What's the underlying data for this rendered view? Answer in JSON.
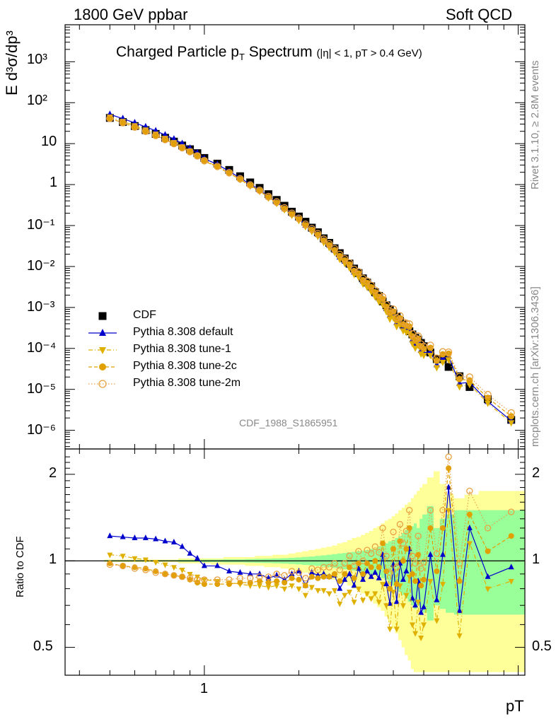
{
  "header": {
    "left": "1800 GeV ppbar",
    "right": "Soft QCD"
  },
  "side": {
    "rivet": "Rivet 3.1.10, ≥ 2.8M events",
    "mcplots": "mcplots.cern.ch [arXiv:1306.3436]"
  },
  "chart_data": {
    "type": "scatter",
    "title": "Charged Particle pT Spectrum",
    "title_main": "Charged Particle p",
    "title_sub": "T",
    "title_rest": " Spectrum",
    "title_cuts": "(|η| < 1, pT > 0.4 GeV)",
    "ylabel": "E d³σ/dp³",
    "ratio_ylabel": "Ratio to CDF",
    "xlabel": "pT",
    "watermark": "CDF_1988_S1865951",
    "xscale": "log",
    "yscale": "log",
    "xlim": [
      0.36,
      10.5
    ],
    "ylim": [
      3.5e-07,
      8000
    ],
    "ratio_ylim": [
      0.4,
      2.45
    ],
    "ratio_yscale": "log",
    "legend_placement": "bottom-left",
    "x_tick_labels": [
      "1"
    ],
    "y_tick_labels": [
      "10⁻⁶",
      "10⁻⁵",
      "10⁻⁴",
      "10⁻³",
      "10⁻²",
      "10⁻¹",
      "1",
      "10",
      "10²",
      "10³"
    ],
    "ratio_tick_labels": [
      "0.5",
      "1",
      "2"
    ],
    "x": [
      0.5,
      0.55,
      0.6,
      0.65,
      0.7,
      0.75,
      0.8,
      0.85,
      0.9,
      0.95,
      1.0,
      1.1,
      1.2,
      1.3,
      1.4,
      1.5,
      1.6,
      1.7,
      1.8,
      1.9,
      2.0,
      2.1,
      2.2,
      2.3,
      2.4,
      2.5,
      2.6,
      2.7,
      2.8,
      2.9,
      3.0,
      3.1,
      3.2,
      3.3,
      3.4,
      3.5,
      3.6,
      3.7,
      3.8,
      3.9,
      4.0,
      4.1,
      4.2,
      4.3,
      4.4,
      4.5,
      4.6,
      4.7,
      4.8,
      4.9,
      5.0,
      5.25,
      5.5,
      5.75,
      6.0,
      6.5,
      7.0,
      8.0,
      9.5
    ],
    "cdf_y": [
      42.5,
      33.7,
      26.9,
      21.4,
      17.3,
      13.9,
      11.2,
      8.99,
      7.3,
      5.85,
      4.47,
      3.25,
      2.28,
      1.6,
      1.13,
      0.83,
      0.583,
      0.422,
      0.304,
      0.218,
      0.166,
      0.124,
      0.0888,
      0.0685,
      0.0488,
      0.0377,
      0.0279,
      0.0212,
      0.0157,
      0.0118,
      0.00891,
      0.00691,
      0.00514,
      0.00406,
      0.00328,
      0.00235,
      0.00191,
      0.0014,
      0.00113,
      0.000898,
      0.00072,
      0.000592,
      0.000466,
      0.000384,
      0.000326,
      0.000262,
      0.000219,
      0.000181,
      0.000164,
      0.000136,
      0.000113,
      7.93e-05,
      5.45e-05,
      5.51e-05,
      3.53e-05,
      2.09e-05,
      1.14e-05,
      5.73e-06,
      1.8e-06
    ],
    "series": [
      {
        "name": "CDF",
        "color": "#000000",
        "marker": "square",
        "ratio": [
          1,
          1,
          1,
          1,
          1,
          1,
          1,
          1,
          1,
          1,
          1,
          1,
          1,
          1,
          1,
          1,
          1,
          1,
          1,
          1,
          1,
          1,
          1,
          1,
          1,
          1,
          1,
          1,
          1,
          1,
          1,
          1,
          1,
          1,
          1,
          1,
          1,
          1,
          1,
          1,
          1,
          1,
          1,
          1,
          1,
          1,
          1,
          1,
          1,
          1,
          1,
          1,
          1,
          1,
          1,
          1,
          1,
          1,
          1
        ]
      },
      {
        "name": "Pythia 8.308 default",
        "color": "#0000cc",
        "marker": "triangle-up",
        "linestyle": "solid",
        "ratio": [
          1.22,
          1.21,
          1.2,
          1.2,
          1.19,
          1.17,
          1.16,
          1.12,
          1.06,
          1.02,
          0.96,
          0.96,
          0.92,
          0.91,
          0.9,
          0.9,
          0.87,
          0.89,
          0.86,
          0.9,
          0.92,
          0.82,
          0.91,
          0.89,
          0.9,
          0.88,
          0.89,
          0.8,
          0.86,
          0.9,
          0.82,
          0.94,
          0.86,
          0.92,
          0.88,
          0.91,
          0.87,
          1.05,
          0.83,
          0.71,
          0.97,
          0.72,
          0.98,
          0.86,
          0.92,
          1.1,
          0.74,
          0.7,
          0.85,
          0.66,
          0.69,
          1.05,
          0.73,
          1.05,
          1.8,
          0.67,
          1.3,
          0.88,
          0.95
        ]
      },
      {
        "name": "Pythia 8.308 tune-1",
        "color": "#e0b000",
        "marker": "triangle-down",
        "linestyle": "dashdot",
        "ratio": [
          1.05,
          1.04,
          1.02,
          1.01,
          0.99,
          0.97,
          0.95,
          0.93,
          0.9,
          0.88,
          0.86,
          0.85,
          0.84,
          0.83,
          0.82,
          0.82,
          0.81,
          0.82,
          0.8,
          0.82,
          0.8,
          0.76,
          0.81,
          0.79,
          0.79,
          0.77,
          0.79,
          0.71,
          0.76,
          0.78,
          0.72,
          0.8,
          0.73,
          0.77,
          0.74,
          0.77,
          0.72,
          0.83,
          0.7,
          0.58,
          0.78,
          0.58,
          0.82,
          0.7,
          0.76,
          0.88,
          0.6,
          0.56,
          0.72,
          0.54,
          0.6,
          0.85,
          0.62,
          0.83,
          1.5,
          0.55,
          1.15,
          0.8,
          0.85
        ]
      },
      {
        "name": "Pythia 8.308 tune-2c",
        "color": "#e0a000",
        "marker": "circle",
        "linestyle": "dashed",
        "ratio": [
          0.98,
          0.96,
          0.95,
          0.94,
          0.92,
          0.9,
          0.89,
          0.88,
          0.86,
          0.84,
          0.83,
          0.83,
          0.83,
          0.84,
          0.84,
          0.85,
          0.84,
          0.85,
          0.84,
          0.87,
          0.86,
          0.82,
          0.88,
          0.87,
          0.88,
          0.88,
          0.9,
          0.85,
          0.9,
          0.95,
          0.87,
          0.98,
          0.9,
          0.98,
          0.95,
          1.0,
          0.95,
          1.15,
          0.92,
          0.8,
          1.1,
          0.83,
          1.17,
          1.0,
          1.1,
          1.3,
          0.9,
          0.85,
          1.05,
          0.82,
          0.86,
          1.3,
          0.92,
          1.3,
          2.1,
          0.85,
          1.45,
          1.08,
          1.22
        ]
      },
      {
        "name": "Pythia 8.308 tune-2m",
        "color": "#e8a040",
        "marker": "circle-open",
        "linestyle": "dotted",
        "ratio": [
          0.97,
          0.96,
          0.94,
          0.93,
          0.91,
          0.9,
          0.89,
          0.88,
          0.87,
          0.86,
          0.86,
          0.86,
          0.86,
          0.87,
          0.87,
          0.88,
          0.88,
          0.9,
          0.89,
          0.92,
          0.91,
          0.87,
          0.94,
          0.93,
          0.95,
          0.95,
          0.98,
          0.93,
          0.98,
          1.04,
          0.96,
          1.08,
          1.0,
          1.09,
          1.06,
          1.12,
          1.07,
          1.3,
          1.04,
          0.91,
          1.26,
          0.95,
          1.34,
          1.15,
          1.27,
          1.5,
          1.04,
          0.98,
          1.22,
          0.94,
          0.99,
          1.5,
          1.06,
          1.5,
          2.3,
          0.98,
          1.75,
          1.3,
          1.48
        ]
      }
    ],
    "bands": {
      "yellow_up": [
        1.01,
        1.01,
        1.01,
        1.01,
        1.01,
        1.01,
        1.01,
        1.02,
        1.02,
        1.02,
        1.02,
        1.02,
        1.03,
        1.03,
        1.03,
        1.04,
        1.04,
        1.05,
        1.05,
        1.06,
        1.07,
        1.08,
        1.09,
        1.1,
        1.11,
        1.12,
        1.13,
        1.15,
        1.16,
        1.18,
        1.2,
        1.21,
        1.23,
        1.25,
        1.27,
        1.3,
        1.32,
        1.35,
        1.38,
        1.4,
        1.43,
        1.46,
        1.5,
        1.53,
        1.57,
        1.6,
        1.65,
        1.7,
        1.75,
        1.8,
        1.85,
        1.95,
        2.05,
        1.85,
        1.7,
        1.65,
        1.7,
        1.75,
        1.75
      ],
      "yellow_low": [
        0.99,
        0.99,
        0.99,
        0.99,
        0.99,
        0.99,
        0.99,
        0.98,
        0.98,
        0.98,
        0.98,
        0.97,
        0.97,
        0.97,
        0.96,
        0.96,
        0.95,
        0.95,
        0.94,
        0.93,
        0.92,
        0.91,
        0.9,
        0.89,
        0.88,
        0.87,
        0.86,
        0.85,
        0.84,
        0.82,
        0.8,
        0.79,
        0.77,
        0.75,
        0.73,
        0.71,
        0.69,
        0.67,
        0.64,
        0.61,
        0.58,
        0.56,
        0.53,
        0.5,
        0.47,
        0.45,
        0.42,
        0.41,
        0.41,
        0.41,
        0.41,
        0.41,
        0.41,
        0.41,
        0.41,
        0.41,
        0.41,
        0.41,
        0.41
      ],
      "green_up": [
        1.005,
        1.005,
        1.005,
        1.005,
        1.005,
        1.005,
        1.005,
        1.008,
        1.008,
        1.008,
        1.01,
        1.01,
        1.012,
        1.012,
        1.014,
        1.016,
        1.018,
        1.02,
        1.022,
        1.025,
        1.028,
        1.032,
        1.035,
        1.04,
        1.045,
        1.05,
        1.055,
        1.06,
        1.065,
        1.07,
        1.075,
        1.08,
        1.085,
        1.09,
        1.1,
        1.1,
        1.12,
        1.14,
        1.15,
        1.17,
        1.18,
        1.2,
        1.22,
        1.25,
        1.28,
        1.3,
        1.32,
        1.35,
        1.3,
        1.4,
        1.45,
        1.55,
        1.3,
        1.4,
        1.45,
        1.5,
        1.5,
        1.5,
        1.5
      ],
      "green_low": [
        0.995,
        0.995,
        0.995,
        0.995,
        0.995,
        0.995,
        0.995,
        0.992,
        0.992,
        0.992,
        0.99,
        0.99,
        0.988,
        0.988,
        0.986,
        0.984,
        0.982,
        0.98,
        0.978,
        0.975,
        0.972,
        0.968,
        0.965,
        0.96,
        0.955,
        0.95,
        0.945,
        0.94,
        0.935,
        0.93,
        0.925,
        0.92,
        0.915,
        0.91,
        0.9,
        0.9,
        0.89,
        0.87,
        0.86,
        0.84,
        0.82,
        0.8,
        0.78,
        0.76,
        0.74,
        0.72,
        0.7,
        0.68,
        0.7,
        0.68,
        0.66,
        0.62,
        0.7,
        0.68,
        0.66,
        0.65,
        0.65,
        0.65,
        0.65
      ]
    }
  }
}
